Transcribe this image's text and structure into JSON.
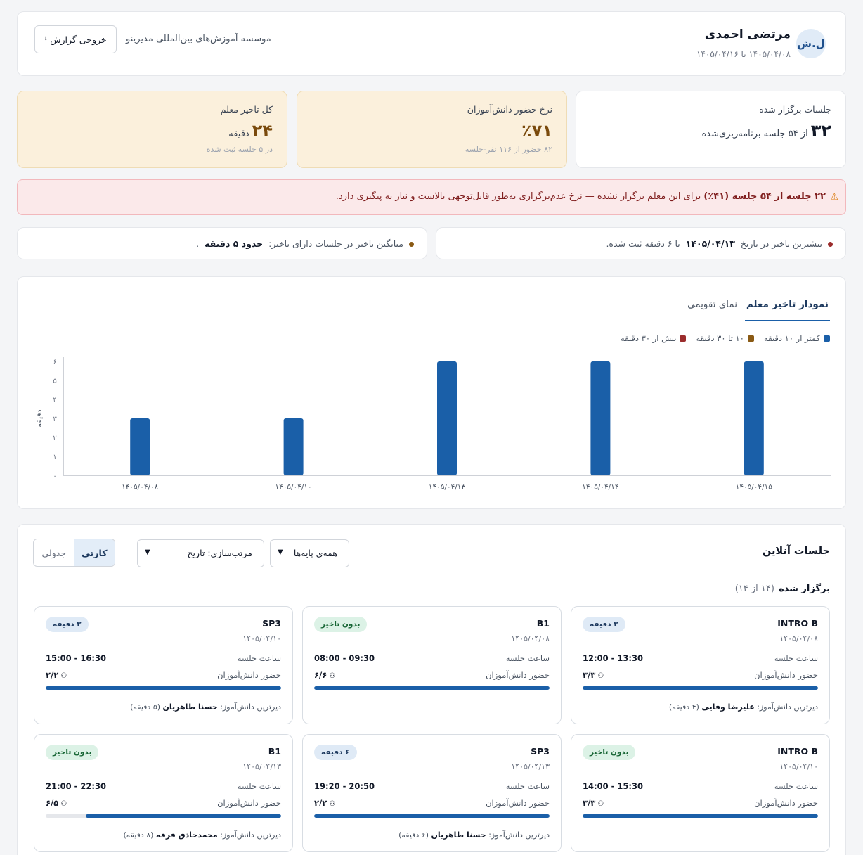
{
  "header": {
    "avatar_initials": "ل.ش",
    "teacher_name": "مرتضی احمدی",
    "date_range": "۱۴۰۵/۰۴/۰۸ تا ۱۴۰۵/۰۴/۱۶",
    "institute": "موسسه آموزش‌های بین‌المللی مدیرینو",
    "export_label": "خروجی گزارش",
    "export_icon": "download-icon"
  },
  "stats": [
    {
      "label": "جلسات برگزار شده",
      "value": "۳۲",
      "unit": "از ۵۴ جلسه برنامه‌ریزی‌شده",
      "sub": ""
    },
    {
      "label": "نرخ حضور دانش‌آموزان",
      "value": "٪۷۱",
      "unit": "",
      "sub": "۸۲ حضور از ۱۱۶ نفر-جلسه"
    },
    {
      "label": "کل تاخیر معلم",
      "value": "۲۴",
      "unit": "دقیقه",
      "sub": "در ۵ جلسه ثبت شده"
    }
  ],
  "alert": {
    "icon": "warning-icon",
    "bold": "۲۲ جلسه از ۵۴ جلسه (۴۱٪)",
    "text": "برای این معلم برگزار نشده — نرخ عدم‌برگزاری به‌طور قابل‌توجهی بالاست و نیاز به پیگیری دارد."
  },
  "info": {
    "max_delay": {
      "pre": "بیشترین تاخیر در تاریخ",
      "date": "۱۴۰۵/۰۴/۱۳",
      "post": "با ۶ دقیقه ثبت شده."
    },
    "avg_delay": {
      "pre": "میانگین تاخیر در جلسات دارای تاخیر:",
      "value": "حدود ۵ دقیقه",
      "post": "."
    }
  },
  "chart_tabs": [
    "نمودار تاخیر معلم",
    "نمای تقویمی"
  ],
  "chart_data": {
    "type": "bar",
    "categories": [
      "۱۴۰۵/۰۴/۰۸",
      "۱۴۰۵/۰۴/۱۰",
      "۱۴۰۵/۰۴/۱۳",
      "۱۴۰۵/۰۴/۱۴",
      "۱۴۰۵/۰۴/۱۵"
    ],
    "values": [
      3,
      3,
      6,
      6,
      6
    ],
    "ylabel": "دقیقه",
    "ylim": [
      0,
      6
    ],
    "yticks": [
      "۰",
      "۱",
      "۲",
      "۳",
      "۴",
      "۵",
      "۶"
    ],
    "grid": false,
    "legend": [
      {
        "name": "کمتر از ۱۰ دقیقه",
        "color": "#1a5fa8"
      },
      {
        "name": "۱۰ تا ۳۰ دقیقه",
        "color": "#8a5a14"
      },
      {
        "name": "بیش از ۳۰ دقیقه",
        "color": "#9b2c2c"
      }
    ],
    "legend_position": "top-right",
    "bar_color": "#1a5fa8"
  },
  "sessions": {
    "title": "جلسات آنلاین",
    "filter_levels": "همه‌ی پایه‌ها",
    "sort": "مرتب‌سازی: تاریخ",
    "view_card": "کارتی",
    "view_table": "جدولی",
    "held_label": "برگزار شده",
    "held_count": "(۱۴ از ۱۴)",
    "time_label": "ساعت جلسه",
    "attendance_label": "حضور دانش‌آموزان",
    "latest_label": "دیرترین دانش‌آموز:",
    "cards": [
      {
        "code": "INTRO B",
        "date": "۱۴۰۵/۰۴/۰۸",
        "badge": "۳ دقیقه",
        "badge_type": "late",
        "time": "12:00 - 13:30",
        "attendance": "۳/۳",
        "fill": 1.0,
        "latest_name": "علیرضا وفایی",
        "latest_delay": "(۴ دقیقه)"
      },
      {
        "code": "B1",
        "date": "۱۴۰۵/۰۴/۰۸",
        "badge": "بدون تاخیر",
        "badge_type": "ok",
        "time": "08:00 - 09:30",
        "attendance": "۶/۶",
        "fill": 1.0,
        "latest_name": "",
        "latest_delay": ""
      },
      {
        "code": "SP3",
        "date": "۱۴۰۵/۰۴/۱۰",
        "badge": "۳ دقیقه",
        "badge_type": "late",
        "time": "15:00 - 16:30",
        "attendance": "۲/۲",
        "fill": 1.0,
        "latest_name": "حسنا طاهریان",
        "latest_delay": "(۵ دقیقه)"
      },
      {
        "code": "INTRO B",
        "date": "۱۴۰۵/۰۴/۱۰",
        "badge": "بدون تاخیر",
        "badge_type": "ok",
        "time": "14:00 - 15:30",
        "attendance": "۳/۳",
        "fill": 1.0,
        "latest_name": "",
        "latest_delay": ""
      },
      {
        "code": "SP3",
        "date": "۱۴۰۵/۰۴/۱۳",
        "badge": "۶ دقیقه",
        "badge_type": "late",
        "time": "19:20 - 20:50",
        "attendance": "۲/۲",
        "fill": 1.0,
        "latest_name": "حسنا طاهریان",
        "latest_delay": "(۶ دقیقه)"
      },
      {
        "code": "B1",
        "date": "۱۴۰۵/۰۴/۱۳",
        "badge": "بدون تاخیر",
        "badge_type": "ok",
        "time": "21:00 - 22:30",
        "attendance": "۶/۵",
        "fill": 0.83,
        "latest_name": "محمدحاذق قرقه",
        "latest_delay": "(۸ دقیقه)"
      }
    ]
  }
}
